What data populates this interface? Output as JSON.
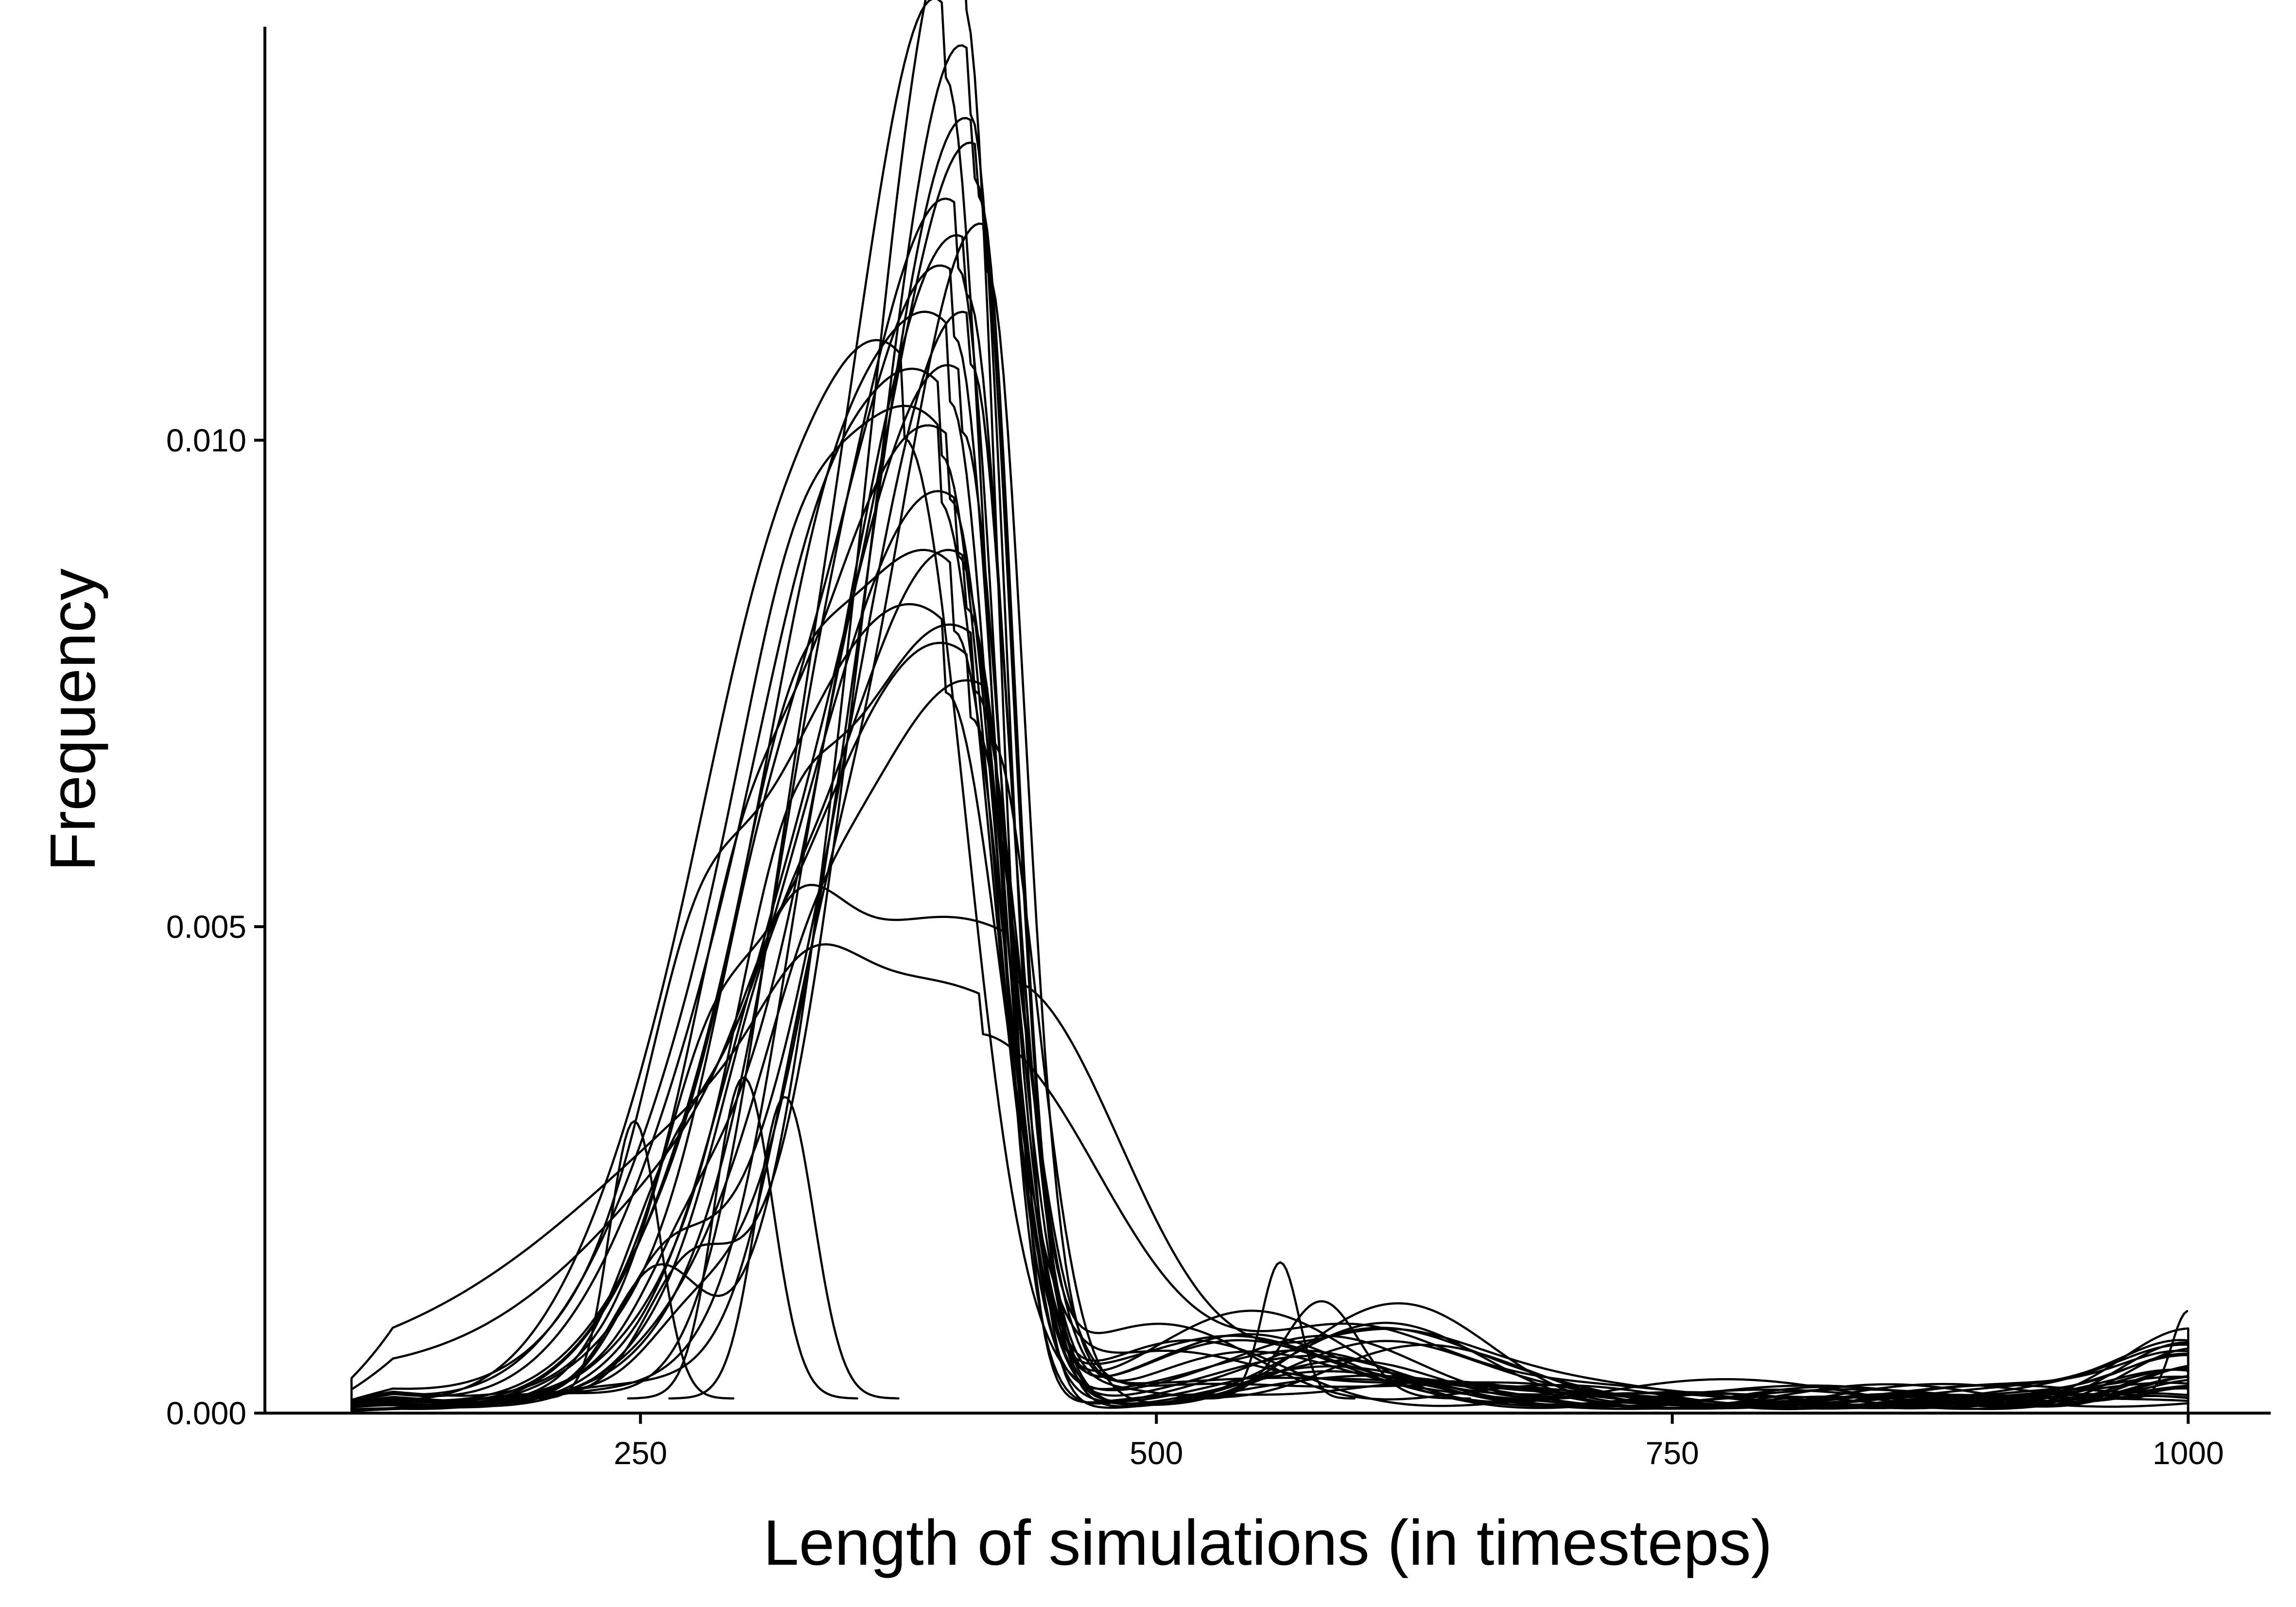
{
  "chart_data": {
    "type": "line",
    "title": "",
    "xlabel": "Length of simulations (in timesteps)",
    "ylabel": "Frequency",
    "xlim": [
      68,
      1040
    ],
    "ylim": [
      0,
      0.01425
    ],
    "xticks": [
      {
        "value": 250,
        "label": "250"
      },
      {
        "value": 500,
        "label": "500"
      },
      {
        "value": 750,
        "label": "750"
      },
      {
        "value": 1000,
        "label": "1000"
      }
    ],
    "yticks": [
      {
        "value": 0.0,
        "label": "0.000"
      },
      {
        "value": 0.005,
        "label": "0.005"
      },
      {
        "value": 0.01,
        "label": "0.010"
      }
    ],
    "grid": false,
    "legend": "none",
    "line_color": "#000000",
    "x_range": [
      110,
      1000
    ],
    "peak_series": [
      {
        "peak_x": 407,
        "peak_y": 0.01425,
        "left_width": 38,
        "right_width": 16,
        "shoulder_y": 0.003
      },
      {
        "peak_x": 398,
        "peak_y": 0.01345,
        "left_width": 42,
        "right_width": 20,
        "shoulder_y": 0.0028
      },
      {
        "peak_x": 410,
        "peak_y": 0.0131,
        "left_width": 40,
        "right_width": 17,
        "shoulder_y": 0.0025
      },
      {
        "peak_x": 412,
        "peak_y": 0.0124,
        "left_width": 45,
        "right_width": 18,
        "shoulder_y": 0.0022
      },
      {
        "peak_x": 414,
        "peak_y": 0.0122,
        "left_width": 47,
        "right_width": 17,
        "shoulder_y": 0.002
      },
      {
        "peak_x": 404,
        "peak_y": 0.0115,
        "left_width": 50,
        "right_width": 19,
        "shoulder_y": 0.0025
      },
      {
        "peak_x": 418,
        "peak_y": 0.0114,
        "left_width": 44,
        "right_width": 18,
        "shoulder_y": 0.0018
      },
      {
        "peak_x": 408,
        "peak_y": 0.0112,
        "left_width": 52,
        "right_width": 20,
        "shoulder_y": 0.0022
      },
      {
        "peak_x": 402,
        "peak_y": 0.0108,
        "left_width": 55,
        "right_width": 20,
        "shoulder_y": 0.0026
      },
      {
        "peak_x": 410,
        "peak_y": 0.0105,
        "left_width": 48,
        "right_width": 19,
        "shoulder_y": 0.002
      },
      {
        "peak_x": 400,
        "peak_y": 0.0102,
        "left_width": 58,
        "right_width": 21,
        "shoulder_y": 0.003
      },
      {
        "peak_x": 406,
        "peak_y": 0.0099,
        "left_width": 54,
        "right_width": 20,
        "shoulder_y": 0.0024
      },
      {
        "peak_x": 378,
        "peak_y": 0.0098,
        "left_width": 60,
        "right_width": 30,
        "shoulder_y": 0.0032
      },
      {
        "peak_x": 396,
        "peak_y": 0.0096,
        "left_width": 62,
        "right_width": 24,
        "shoulder_y": 0.0028
      },
      {
        "peak_x": 400,
        "peak_y": 0.0092,
        "left_width": 60,
        "right_width": 23,
        "shoulder_y": 0.0025
      },
      {
        "peak_x": 395,
        "peak_y": 0.0091,
        "left_width": 64,
        "right_width": 25,
        "shoulder_y": 0.003
      },
      {
        "peak_x": 404,
        "peak_y": 0.0086,
        "left_width": 58,
        "right_width": 22,
        "shoulder_y": 0.0022
      },
      {
        "peak_x": 408,
        "peak_y": 0.0081,
        "left_width": 56,
        "right_width": 22,
        "shoulder_y": 0.002
      },
      {
        "peak_x": 402,
        "peak_y": 0.0078,
        "left_width": 62,
        "right_width": 24,
        "shoulder_y": 0.0026
      },
      {
        "peak_x": 412,
        "peak_y": 0.0072,
        "left_width": 60,
        "right_width": 22,
        "shoulder_y": 0.0022
      },
      {
        "peak_x": 398,
        "peak_y": 0.007,
        "left_width": 66,
        "right_width": 26,
        "shoulder_y": 0.0028
      },
      {
        "peak_x": 410,
        "peak_y": 0.0068,
        "left_width": 62,
        "right_width": 24,
        "shoulder_y": 0.0024
      },
      {
        "peak_x": 420,
        "peak_y": 0.00665,
        "left_width": 60,
        "right_width": 22,
        "shoulder_y": 0.002
      },
      {
        "peak_x": 430,
        "peak_y": 0.0041,
        "left_width": 95,
        "right_width": 55,
        "shoulder_y": 0.0018
      },
      {
        "peak_x": 415,
        "peak_y": 0.00355,
        "left_width": 105,
        "right_width": 60,
        "shoulder_y": 0.0016
      }
    ],
    "tail_bumps": [
      {
        "x": 247,
        "y": 0.00285,
        "width": 12
      },
      {
        "x": 300,
        "y": 0.0033,
        "width": 14
      },
      {
        "x": 320,
        "y": 0.0031,
        "width": 14
      },
      {
        "x": 560,
        "y": 0.0014,
        "width": 9
      },
      {
        "x": 580,
        "y": 0.001,
        "width": 18
      },
      {
        "x": 1000,
        "y": 0.0009,
        "width": 8
      }
    ]
  }
}
